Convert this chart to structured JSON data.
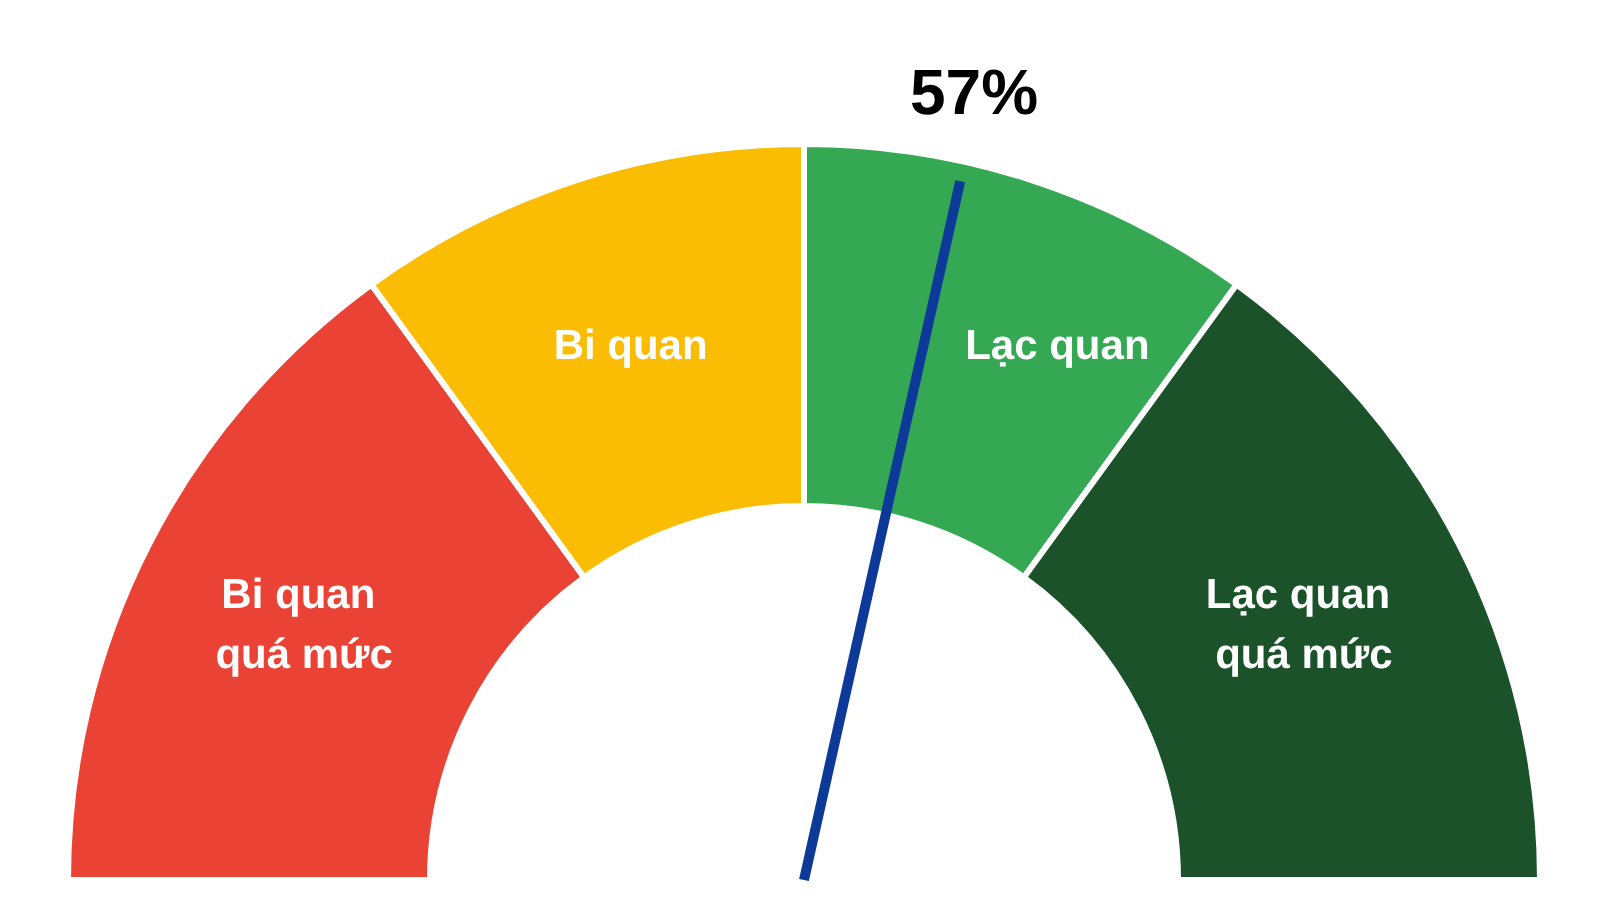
{
  "chart_data": {
    "type": "donut",
    "categories": [
      "Bi quan quá mức",
      "Bi quan",
      "Lạc quan",
      "Lạc quan quá mức"
    ],
    "values": [
      30,
      20,
      20,
      30
    ],
    "colors": [
      "#ea4335",
      "#fbbc04",
      "#34a853",
      "#1b5229"
    ],
    "needle": "Lạc quan",
    "annotations": [
      "57%"
    ]
  }
}
